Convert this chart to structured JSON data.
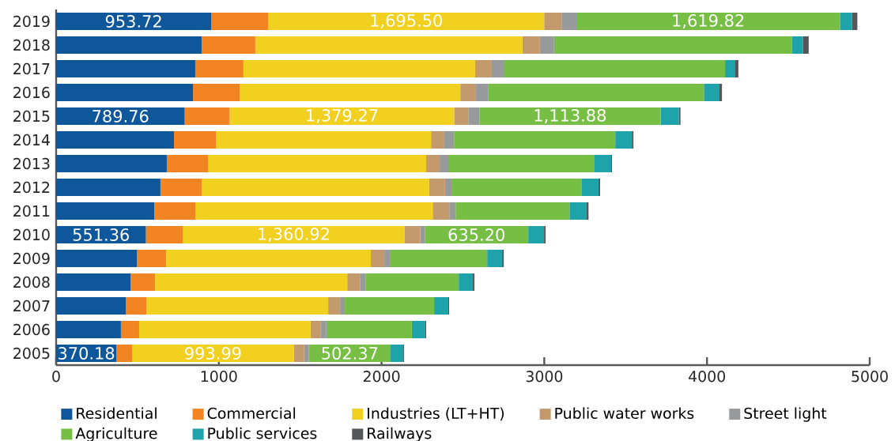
{
  "chart_data": {
    "type": "bar",
    "orientation": "horizontal",
    "stacked": true,
    "categories": [
      "2019",
      "2018",
      "2017",
      "2016",
      "2015",
      "2014",
      "2013",
      "2012",
      "2011",
      "2010",
      "2009",
      "2008",
      "2007",
      "2006",
      "2005"
    ],
    "series": [
      {
        "name": "Residential",
        "color": "#0f579b",
        "values": [
          953.72,
          894,
          855,
          841,
          789.76,
          724,
          680,
          641,
          603,
          551.36,
          496,
          457,
          428,
          398,
          370.18
        ],
        "value_labels": [
          "953.72",
          null,
          null,
          null,
          "789.76",
          null,
          null,
          null,
          null,
          "551.36",
          null,
          null,
          null,
          null,
          "370.18"
        ]
      },
      {
        "name": "Commercial",
        "color": "#f28522",
        "values": [
          350,
          330,
          296,
          287,
          277,
          258,
          253,
          253,
          253,
          228,
          180,
          151,
          126,
          112,
          97
        ]
      },
      {
        "name": "Industries (LT+HT)",
        "color": "#f2d020",
        "values": [
          1695.5,
          1642,
          1424,
          1356,
          1379.27,
          1322,
          1341,
          1399,
          1458,
          1360.92,
          1258,
          1181,
          1118,
          1054,
          993.99
        ],
        "value_labels": [
          "1,695.50",
          null,
          null,
          null,
          "1,379.27",
          null,
          null,
          null,
          null,
          "1,360.92",
          null,
          null,
          null,
          null,
          "993.99"
        ]
      },
      {
        "name": "Public water works",
        "color": "#c49a6c",
        "values": [
          107,
          107,
          102,
          92,
          87,
          78,
          83,
          97,
          102,
          97,
          83,
          78,
          73,
          63,
          63
        ]
      },
      {
        "name": "Street light",
        "color": "#97999b",
        "values": [
          91,
          87,
          78,
          78,
          68,
          63,
          53,
          44,
          39,
          29,
          34,
          34,
          29,
          34,
          29
        ]
      },
      {
        "name": "Agriculture",
        "color": "#77bf44",
        "values": [
          1619.82,
          1463,
          1356,
          1327,
          1113.88,
          991,
          899,
          797,
          700,
          635.2,
          598,
          573,
          549,
          525,
          502.37
        ],
        "value_labels": [
          "1,619.82",
          null,
          null,
          null,
          "1,113.88",
          null,
          null,
          null,
          null,
          "635.20",
          null,
          null,
          null,
          null,
          "502.37"
        ]
      },
      {
        "name": "Public services",
        "color": "#1fa3ab",
        "values": [
          73,
          68,
          63,
          92,
          112,
          102,
          102,
          102,
          102,
          97,
          92,
          87,
          87,
          83,
          78
        ]
      },
      {
        "name": "Railways",
        "color": "#555659",
        "values": [
          34,
          34,
          19,
          19,
          10,
          10,
          5,
          10,
          15,
          10,
          10,
          10,
          5,
          5,
          5
        ]
      }
    ],
    "xlim": [
      0,
      5000
    ],
    "xticks": [
      0,
      1000,
      2000,
      3000,
      4000,
      5000
    ],
    "legend": "bottom"
  }
}
